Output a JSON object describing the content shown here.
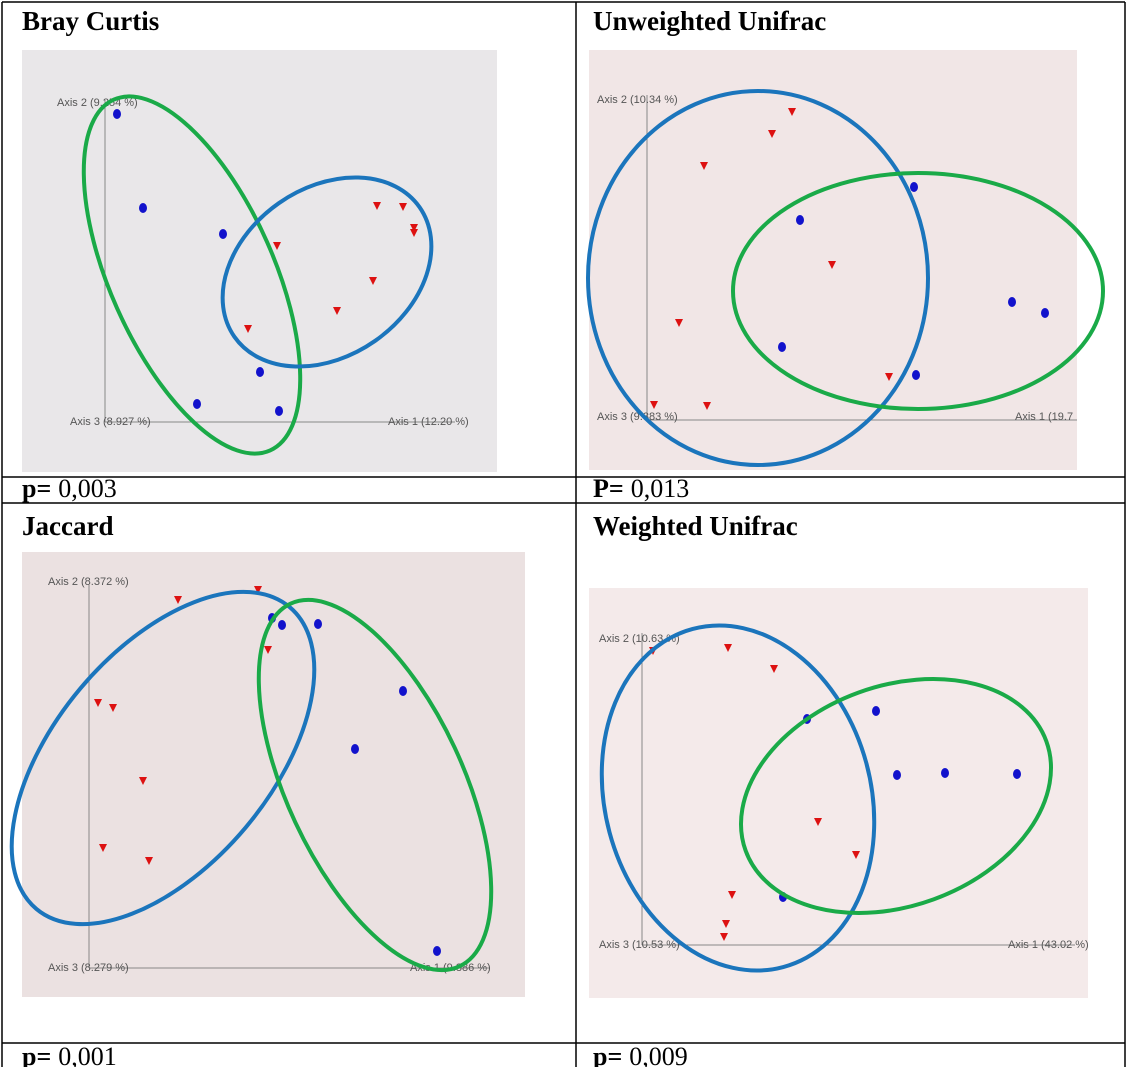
{
  "panels": [
    {
      "title": "Bray Curtis",
      "axis_labels": [
        "Axis 2 (9.254 %)",
        "Axis 3 (8.927 %)",
        "Axis 1 (12.20 %)"
      ],
      "p_label": "p=",
      "p_value": "0,003"
    },
    {
      "title": "Unweighted Unifrac",
      "axis_labels": [
        "Axis 2 (10.34 %)",
        "Axis 3 (9.383 %)",
        "Axis 1 (19.7"
      ],
      "p_label": "P=",
      "p_value": "0,013"
    },
    {
      "title": "Jaccard",
      "axis_labels": [
        "Axis 2 (8.372 %)",
        "Axis 3 (8.279 %)",
        "Axis 1 (9.886 %)"
      ],
      "p_label": "p=",
      "p_value": "0,001"
    },
    {
      "title": "Weighted Unifrac",
      "axis_labels": [
        "Axis 2 (10.63 %)",
        "Axis 3 (10.53 %)",
        "Axis 1 (43.02 %)"
      ],
      "p_label": "p=",
      "p_value": "0,009"
    }
  ]
}
